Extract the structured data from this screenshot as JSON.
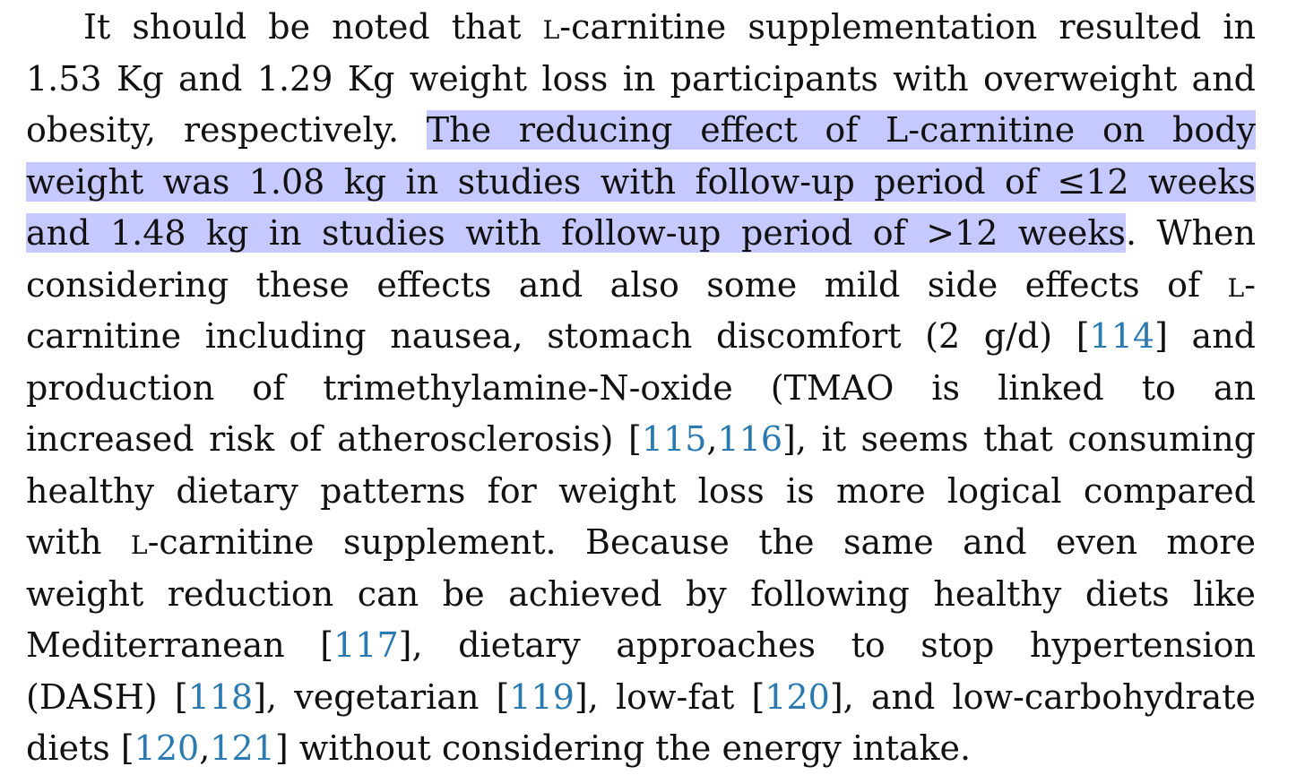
{
  "paragraph": {
    "lines": [
      [
        {
          "t": "It should be noted that "
        },
        {
          "t": "L",
          "sc": true
        },
        {
          "t": "-carnitine supplementation resulted in"
        }
      ],
      [
        {
          "t": "1.53 Kg and 1.29 Kg weight loss in participants with overweight and"
        }
      ],
      [
        {
          "t": "obesity, respectively. "
        },
        {
          "t": "The reducing effect of L-carnitine on body",
          "hl": true
        }
      ],
      [
        {
          "t": "weight was 1.08 kg in studies with follow-up period of ≤12 weeks",
          "hl": true
        }
      ],
      [
        {
          "t": "and 1.48 kg in studies with follow-up period of >12 weeks",
          "hl": true
        },
        {
          "t": ". When"
        }
      ],
      [
        {
          "t": "considering these effects and also some mild side effects of "
        },
        {
          "t": "L",
          "sc": true
        },
        {
          "t": "-"
        }
      ],
      [
        {
          "t": "carnitine including nausea, stomach discomfort (2 g/d) ["
        },
        {
          "t": "114",
          "ref": true
        },
        {
          "t": "] and"
        }
      ],
      [
        {
          "t": "production of trimethylamine-N-oxide (TMAO is linked to an"
        }
      ],
      [
        {
          "t": "increased risk of atherosclerosis) ["
        },
        {
          "t": "115",
          "ref": true
        },
        {
          "t": ","
        },
        {
          "t": "116",
          "ref": true
        },
        {
          "t": "], it seems that consuming"
        }
      ],
      [
        {
          "t": "healthy dietary patterns for weight loss is more logical compared"
        }
      ],
      [
        {
          "t": "with "
        },
        {
          "t": "L",
          "sc": true
        },
        {
          "t": "-carnitine supplement. Because the same and even more"
        }
      ],
      [
        {
          "t": "weight reduction can be achieved by following healthy diets like"
        }
      ],
      [
        {
          "t": "Mediterranean ["
        },
        {
          "t": "117",
          "ref": true
        },
        {
          "t": "], dietary approaches to stop hypertension"
        }
      ],
      [
        {
          "t": "(DASH) ["
        },
        {
          "t": "118",
          "ref": true
        },
        {
          "t": "], vegetarian ["
        },
        {
          "t": "119",
          "ref": true
        },
        {
          "t": "], low-fat ["
        },
        {
          "t": "120",
          "ref": true
        },
        {
          "t": "], and low-carbohydrate"
        }
      ],
      [
        {
          "t": "diets ["
        },
        {
          "t": "120",
          "ref": true
        },
        {
          "t": ","
        },
        {
          "t": "121",
          "ref": true
        },
        {
          "t": "] without considering the energy intake."
        }
      ]
    ]
  }
}
